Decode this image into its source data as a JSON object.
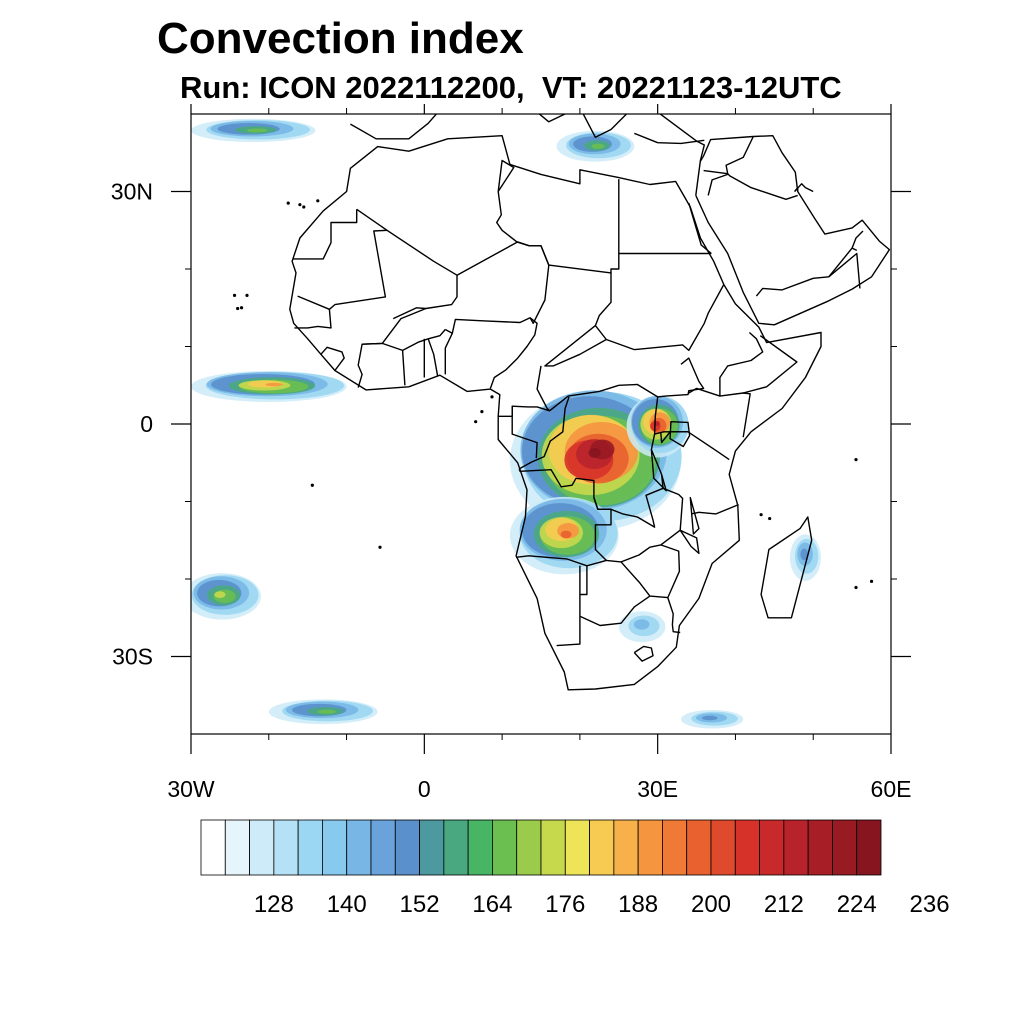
{
  "figure": {
    "title": "Convection index",
    "subtitle": "Run: ICON 2022112200,  VT: 20221123-12UTC"
  },
  "map": {
    "projection": "cylindrical-equidistant",
    "lon_range": [
      -30,
      60
    ],
    "lat_range": [
      -40,
      40
    ],
    "lon_tick_labels": [
      {
        "lon": -30,
        "label": "30W"
      },
      {
        "lon": 0,
        "label": "0"
      },
      {
        "lon": 30,
        "label": "30E"
      },
      {
        "lon": 60,
        "label": "60E"
      }
    ],
    "lat_tick_labels": [
      {
        "lat": 30,
        "label": "30N"
      },
      {
        "lat": 0,
        "label": "0"
      },
      {
        "lat": -30,
        "label": "30S"
      }
    ],
    "minor_lon_ticks": [
      -20,
      -10,
      10,
      20,
      40,
      50
    ],
    "minor_lat_ticks": [
      20,
      10,
      -10,
      -20
    ],
    "convection_regions": [
      {
        "name": "central-africa",
        "center": [
          22,
          -4
        ],
        "radii": [
          11,
          9
        ],
        "peak": 228
      },
      {
        "name": "angola-zambia",
        "center": [
          18,
          -14
        ],
        "radii": [
          7,
          5
        ],
        "peak": 200
      },
      {
        "name": "east-africa-lakes",
        "center": [
          30,
          0
        ],
        "radii": [
          4,
          4
        ],
        "peak": 216
      },
      {
        "name": "atlantic-itcz",
        "center": [
          -20,
          5
        ],
        "radii": [
          10,
          2
        ],
        "peak": 188
      },
      {
        "name": "south-atlantic",
        "center": [
          -26,
          -22
        ],
        "radii": [
          5,
          3
        ],
        "peak": 176
      },
      {
        "name": "south-atlantic-2",
        "center": [
          -13,
          -37
        ],
        "radii": [
          7,
          1.6
        ],
        "peak": 170
      },
      {
        "name": "madagascar-channel",
        "center": [
          49,
          -17
        ],
        "radii": [
          2,
          3
        ],
        "peak": 150
      },
      {
        "name": "mediterranean",
        "center": [
          22,
          36
        ],
        "radii": [
          5,
          2
        ],
        "peak": 165
      },
      {
        "name": "north-atlantic",
        "center": [
          -22,
          38
        ],
        "radii": [
          8,
          1.5
        ],
        "peak": 168
      },
      {
        "name": "southeast-ocean",
        "center": [
          37,
          -38
        ],
        "radii": [
          4,
          1.2
        ],
        "peak": 150
      },
      {
        "name": "south-africa-east",
        "center": [
          28,
          -26
        ],
        "radii": [
          3,
          2
        ],
        "peak": 140
      }
    ]
  },
  "colorbar": {
    "levels_start": 116,
    "levels_step": 4,
    "labels": [
      "128",
      "140",
      "152",
      "164",
      "176",
      "188",
      "200",
      "212",
      "224",
      "236"
    ],
    "colors": [
      "#ffffff",
      "#e6f4fb",
      "#cdebf8",
      "#b4e1f5",
      "#9bd6f2",
      "#88c9ee",
      "#78b6e5",
      "#6aa3db",
      "#5a90cc",
      "#4c9aa0",
      "#4aa880",
      "#48b564",
      "#6bbf50",
      "#9acb4a",
      "#c6d84c",
      "#ede457",
      "#f7cb51",
      "#f7b04a",
      "#f59540",
      "#ef7a36",
      "#e9612f",
      "#e04a2c",
      "#d6322a",
      "#c82a2b",
      "#b8232b",
      "#a81e27",
      "#981a22",
      "#871520"
    ]
  }
}
